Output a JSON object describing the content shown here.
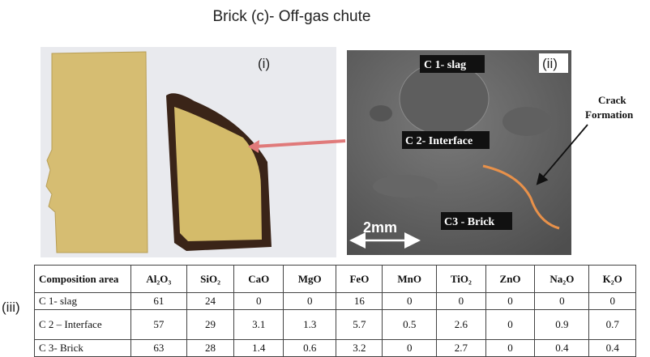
{
  "title": "Brick (c)- Off-gas chute",
  "panels": {
    "i": "(i)",
    "ii": "(ii)",
    "iii": "(iii)"
  },
  "sem_image": {
    "labels": [
      "C 1- slag",
      "C 2- Interface",
      "C3 - Brick"
    ],
    "scale_bar": "2mm",
    "annotation_lines": [
      "Crack",
      "Formation"
    ]
  },
  "table": {
    "header": [
      "Composition area",
      "Al₂O₃",
      "SiO₂",
      "CaO",
      "MgO",
      "FeO",
      "MnO",
      "TiO₂",
      "ZnO",
      "Na₂O",
      "K₂O"
    ],
    "rows": [
      [
        "C 1- slag",
        61,
        24,
        0,
        0,
        16,
        0,
        0,
        0,
        0,
        0
      ],
      [
        "C 2 – Interface",
        57,
        29,
        3.1,
        1.3,
        5.7,
        0.5,
        2.6,
        0,
        0.9,
        0.7
      ],
      [
        "C 3- Brick",
        63,
        28,
        1.4,
        0.6,
        3.2,
        0,
        2.7,
        0,
        0.4,
        0.4
      ]
    ]
  }
}
